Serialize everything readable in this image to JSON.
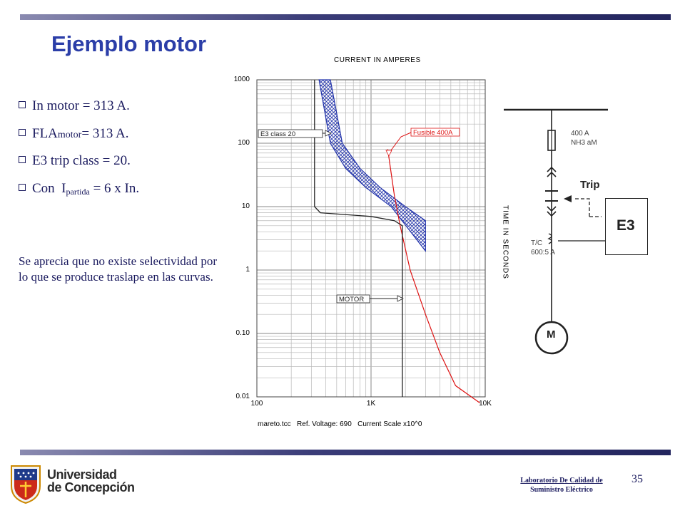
{
  "slide": {
    "title": "Ejemplo motor",
    "bullets": [
      {
        "pre": "In motor = 313 A."
      },
      {
        "pre": "FLA",
        "small": "motor",
        "post": "= 313 A."
      },
      {
        "pre": "E3 trip class = 20."
      },
      {
        "pre": "Con  I",
        "sub": "partida",
        "post": " = 6 x In."
      }
    ],
    "note": "Se aprecia  que no existe selectividad por lo que se produce traslape en las curvas."
  },
  "tcc_chart": {
    "title": "CURRENT IN AMPERES",
    "y_axis_label": "TIME IN SECONDS",
    "y_tick_labels": [
      "1000",
      "100",
      "10",
      "1",
      "0.10",
      "0.01"
    ],
    "x_tick_labels": [
      "100",
      "1K",
      "10K"
    ],
    "annotations": {
      "e3": "E3 class 20",
      "fuse": "Fusible 400A",
      "motor": "MOTOR"
    },
    "footer": {
      "file": "mareto.tcc",
      "voltage": "Ref. Voltage: 690",
      "scale": "Current Scale x10^0"
    },
    "colors": {
      "e3_band": "#2233aa",
      "fuse_curve": "#dd1111",
      "grid": "#b8b8b8"
    }
  },
  "chart_data": {
    "type": "line",
    "title": "CURRENT IN AMPERES",
    "xlabel": "",
    "ylabel": "TIME IN SECONDS",
    "x_scale": "log",
    "y_scale": "log",
    "xlim": [
      100,
      10000
    ],
    "ylim": [
      0.01,
      1000
    ],
    "series": [
      {
        "name": "E3 class 20",
        "kind": "band",
        "lower": [
          [
            440,
            1000
          ],
          [
            560,
            100
          ],
          [
            800,
            40
          ],
          [
            1200,
            20
          ],
          [
            2000,
            10
          ],
          [
            3000,
            6
          ]
        ],
        "upper": [
          [
            350,
            1000
          ],
          [
            440,
            100
          ],
          [
            600,
            40
          ],
          [
            900,
            20
          ],
          [
            1500,
            10
          ],
          [
            3000,
            2
          ]
        ]
      },
      {
        "name": "Fusible 400A",
        "x": [
          1400,
          1600,
          1800,
          2200,
          3000,
          4000,
          5500,
          9000
        ],
        "y": [
          80,
          15,
          5,
          1,
          0.2,
          0.05,
          0.015,
          0.008
        ]
      },
      {
        "name": "MOTOR",
        "kind": "starting-profile",
        "x": [
          320,
          320,
          360,
          1000,
          1600,
          1880,
          1880
        ],
        "y": [
          1000,
          10,
          8,
          7,
          6,
          5,
          0.01
        ]
      }
    ]
  },
  "one_line_diagram": {
    "fuse_label": [
      "400 A",
      "NH3 aM"
    ],
    "trip_label": "Trip",
    "relay_label": "E3",
    "ct_label": [
      "T/C",
      "600:5 A"
    ],
    "motor_label": "M"
  },
  "footer": {
    "university_line1": "Universidad",
    "university_line2": "de Concepción",
    "lab_line1": "Laboratorio De Calidad de",
    "lab_line2": "Suministro Eléctrico",
    "page_number": "35"
  }
}
